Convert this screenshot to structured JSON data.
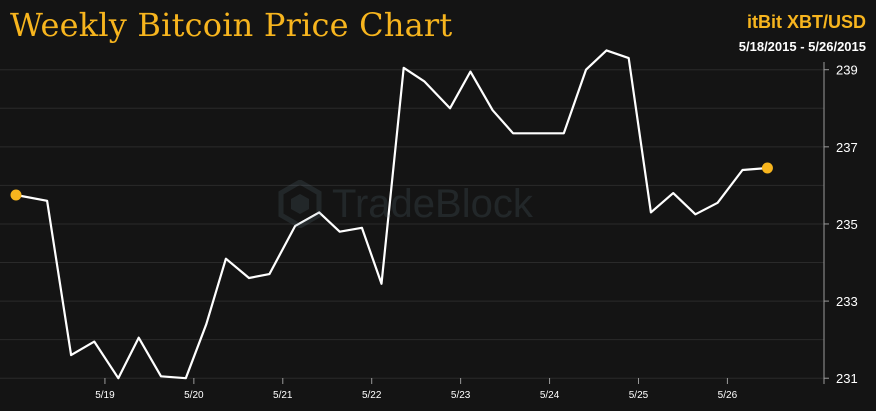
{
  "title": "Weekly Bitcoin Price Chart",
  "source_label": "itBit XBT/USD",
  "date_range": "5/18/2015 - 5/26/2015",
  "watermark": "TradeBlock",
  "colors": {
    "background": "#141414",
    "accent": "#f7b51e",
    "line": "#ffffff",
    "grid": "#2a2a2a",
    "axis": "#9a9a9a",
    "tick_text": "#ffffff"
  },
  "chart_data": {
    "type": "line",
    "title": "Weekly Bitcoin Price Chart",
    "xlabel": "",
    "ylabel": "",
    "x_range": [
      0,
      8.85
    ],
    "ylim": [
      230.85,
      239.2
    ],
    "x_ticks": [
      {
        "label": "5/19",
        "x": 1
      },
      {
        "label": "5/20",
        "x": 2
      },
      {
        "label": "5/21",
        "x": 3
      },
      {
        "label": "5/22",
        "x": 4
      },
      {
        "label": "5/23",
        "x": 5
      },
      {
        "label": "5/24",
        "x": 6
      },
      {
        "label": "5/25",
        "x": 7
      },
      {
        "label": "5/26",
        "x": 8
      }
    ],
    "y_ticks": [
      231,
      233,
      235,
      237,
      239
    ],
    "grid": "horizontal",
    "series": [
      {
        "name": "",
        "x": [
          0,
          0.35,
          0.62,
          0.88,
          1.15,
          1.38,
          1.63,
          1.91,
          2.14,
          2.36,
          2.62,
          2.85,
          3.14,
          3.41,
          3.64,
          3.89,
          4.11,
          4.36,
          4.59,
          4.88,
          5.11,
          5.36,
          5.59,
          5.84,
          6.16,
          6.41,
          6.64,
          6.89,
          7.14,
          7.39,
          7.64,
          7.89,
          8.17,
          8.45
        ],
        "y": [
          235.75,
          235.6,
          231.6,
          231.95,
          231.0,
          232.05,
          231.05,
          231.0,
          232.4,
          234.1,
          233.6,
          233.7,
          234.95,
          235.3,
          234.8,
          234.9,
          233.45,
          239.05,
          238.7,
          238.0,
          238.95,
          237.95,
          237.35,
          237.35,
          237.35,
          239.0,
          239.5,
          239.3,
          235.3,
          235.8,
          235.25,
          235.55,
          236.4,
          236.45
        ]
      }
    ],
    "highlighted_points": [
      0,
      33
    ]
  }
}
